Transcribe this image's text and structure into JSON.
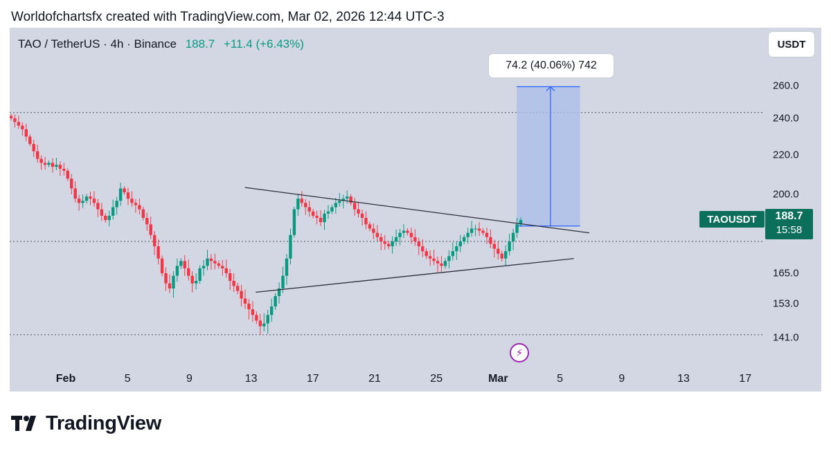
{
  "attribution": "Worldofchartsfx created with TradingView.com, Mar 02, 2026 12:44 UTC-3",
  "header": {
    "symbol": "TAO / TetherUS · 4h · Binance",
    "last_price": "188.7",
    "change": "+11.4 (+6.43%)"
  },
  "currency_button": "USDT",
  "ticker_tag": "TAOUSDT",
  "price_tag": {
    "value": "188.7",
    "countdown": "15:58"
  },
  "range_label": "74.2 (40.06%) 742",
  "brand_name": "TradingView",
  "colors": {
    "up": "#089981",
    "down": "#f23645",
    "range_fill": "#a9bdeb",
    "range_line": "#2962ff",
    "tag": "#0c6f5b"
  },
  "icons": [
    "flash-icon",
    "tradingview-logo-icon"
  ],
  "chart_data": {
    "type": "candlestick",
    "price_axis": {
      "ticks": [
        260.0,
        240.0,
        220.0,
        200.0,
        165.0,
        153.0,
        141.0
      ],
      "range": [
        130,
        280
      ]
    },
    "time_axis": {
      "labels": [
        {
          "label": "Feb",
          "day": 1,
          "bold": true
        },
        {
          "label": "5",
          "day": 5,
          "bold": false
        },
        {
          "label": "9",
          "day": 9,
          "bold": false
        },
        {
          "label": "13",
          "day": 13,
          "bold": false
        },
        {
          "label": "17",
          "day": 17,
          "bold": false
        },
        {
          "label": "21",
          "day": 21,
          "bold": false
        },
        {
          "label": "25",
          "day": 25,
          "bold": false
        },
        {
          "label": "Mar",
          "day": 29,
          "bold": true
        },
        {
          "label": "5",
          "day": 33,
          "bold": false
        },
        {
          "label": "9",
          "day": 37,
          "bold": false
        },
        {
          "label": "13",
          "day": 41,
          "bold": false
        },
        {
          "label": "17",
          "day": 45,
          "bold": false
        }
      ]
    },
    "horizontal_levels": [
      243.5,
      178.0,
      142.0
    ],
    "trendlines": [
      {
        "from": {
          "day": 12.6,
          "price": 203.5
        },
        "to": {
          "day": 34.9,
          "price": 182.0
        }
      },
      {
        "from": {
          "day": 13.3,
          "price": 157.5
        },
        "to": {
          "day": 33.9,
          "price": 171.0
        }
      }
    ],
    "price_range": {
      "from_day": 30.2,
      "to_day": 34.3,
      "low": 185.2,
      "high": 259.4
    },
    "candles_close": [
      240,
      238,
      236,
      234,
      230,
      226,
      222,
      218,
      216,
      215,
      216,
      214,
      215,
      213,
      212,
      208,
      203,
      198,
      196,
      197,
      199,
      198,
      196,
      193,
      190,
      188,
      190,
      194,
      197,
      203,
      201,
      198,
      196,
      195,
      193,
      189,
      186,
      181,
      176,
      171,
      165,
      161,
      159,
      164,
      168,
      170,
      167,
      164,
      161,
      162,
      167,
      168,
      171,
      170,
      169,
      168,
      167,
      165,
      162,
      160,
      158,
      155,
      153,
      151,
      149,
      147,
      145,
      146,
      149,
      152,
      156,
      159,
      164,
      171,
      181,
      193,
      198,
      196,
      194,
      192,
      190,
      189,
      187,
      191,
      192,
      194,
      196,
      197,
      198,
      199,
      196,
      193,
      191,
      189,
      186,
      184,
      182,
      180,
      178,
      177,
      176,
      178,
      180,
      182,
      183,
      182,
      180,
      178,
      176,
      174,
      172,
      171,
      170,
      169,
      168,
      170,
      172,
      174,
      176,
      178,
      180,
      182,
      184,
      184,
      183,
      182,
      180,
      177,
      175,
      173,
      171,
      174,
      178,
      182,
      186,
      188
    ]
  }
}
